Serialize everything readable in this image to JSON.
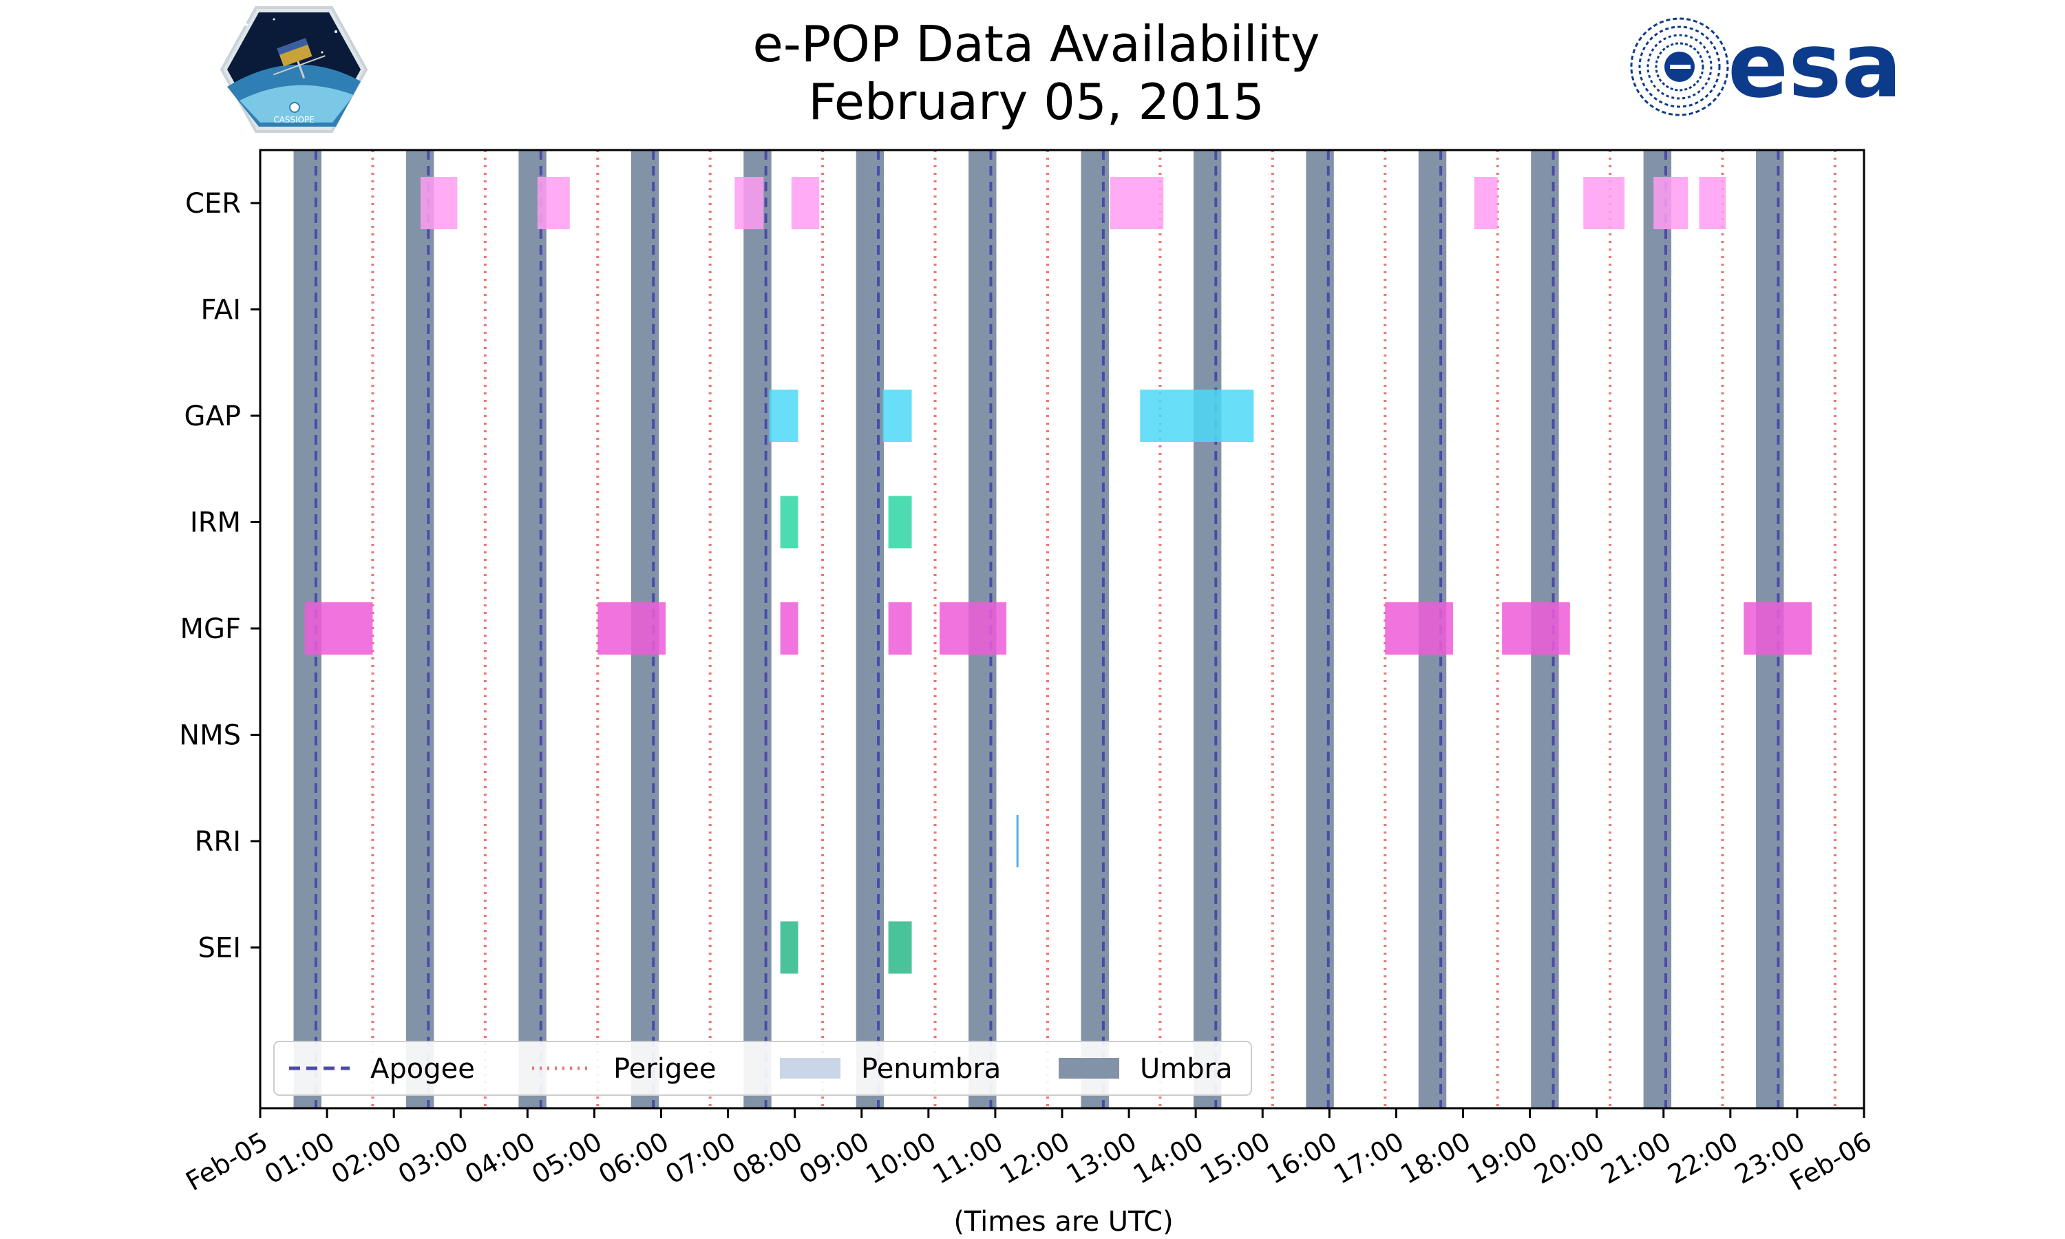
{
  "title": {
    "line1": "e-POP Data Availability",
    "line2": "February 05, 2015"
  },
  "logos": {
    "left_text": "CASSIOPE",
    "right_text": "esa"
  },
  "colors": {
    "umbra": "#8393a7",
    "apogee": "#4b4ba8",
    "perigee": "#f07373",
    "penumbra": "#c9d6e8",
    "CER": "#ff9ef2",
    "GAP": "#4dd8f7",
    "IRM": "#2ed6a3",
    "MGF": "#ef5cd8",
    "RRI": "#3aa0d8",
    "SEI": "#2ab88a",
    "esa_blue": "#0d3b8c"
  },
  "chart_data": {
    "type": "timeline",
    "xlabel": "(Times are UTC)",
    "xlim": [
      "Feb-05 00:00",
      "Feb-06 00:00"
    ],
    "x_ticks": [
      "Feb-05",
      "01:00",
      "02:00",
      "03:00",
      "04:00",
      "05:00",
      "06:00",
      "07:00",
      "08:00",
      "09:00",
      "10:00",
      "11:00",
      "12:00",
      "13:00",
      "14:00",
      "15:00",
      "16:00",
      "17:00",
      "18:00",
      "19:00",
      "20:00",
      "21:00",
      "22:00",
      "23:00",
      "Feb-06"
    ],
    "instruments": [
      "CER",
      "FAI",
      "GAP",
      "IRM",
      "MGF",
      "NMS",
      "RRI",
      "SEI"
    ],
    "umbra": [
      [
        "00:30",
        "00:55"
      ],
      [
        "02:11",
        "02:36"
      ],
      [
        "03:52",
        "04:17"
      ],
      [
        "05:33",
        "05:58"
      ],
      [
        "07:14",
        "07:39"
      ],
      [
        "08:55",
        "09:20"
      ],
      [
        "10:36",
        "11:01"
      ],
      [
        "12:17",
        "12:42"
      ],
      [
        "13:58",
        "14:23"
      ],
      [
        "15:39",
        "16:04"
      ],
      [
        "17:20",
        "17:45"
      ],
      [
        "19:01",
        "19:26"
      ],
      [
        "20:42",
        "21:07"
      ],
      [
        "22:23",
        "22:48"
      ]
    ],
    "apogee": [
      "00:50",
      "02:31",
      "04:12",
      "05:53",
      "07:34",
      "09:15",
      "10:56",
      "12:37",
      "14:18",
      "15:59",
      "17:40",
      "19:21",
      "21:02",
      "22:43"
    ],
    "perigee": [
      "01:41",
      "03:22",
      "05:03",
      "06:44",
      "08:25",
      "10:06",
      "11:47",
      "13:28",
      "15:09",
      "16:50",
      "18:31",
      "20:12",
      "21:53",
      "23:34"
    ],
    "availability": {
      "CER": [
        [
          "02:24",
          "02:57"
        ],
        [
          "04:09",
          "04:38"
        ],
        [
          "07:06",
          "07:32"
        ],
        [
          "07:57",
          "08:22"
        ],
        [
          "12:43",
          "13:31"
        ],
        [
          "18:10",
          "18:31"
        ],
        [
          "19:48",
          "20:25"
        ],
        [
          "20:51",
          "21:22"
        ],
        [
          "21:32",
          "21:56"
        ]
      ],
      "FAI": [],
      "GAP": [
        [
          "07:37",
          "08:03"
        ],
        [
          "09:19",
          "09:45"
        ],
        [
          "13:10",
          "14:52"
        ]
      ],
      "IRM": [
        [
          "07:47",
          "08:03"
        ],
        [
          "09:24",
          "09:45"
        ]
      ],
      "MGF": [
        [
          "00:40",
          "01:41"
        ],
        [
          "05:03",
          "06:04"
        ],
        [
          "07:47",
          "08:03"
        ],
        [
          "09:24",
          "09:45"
        ],
        [
          "10:10",
          "11:10"
        ],
        [
          "16:50",
          "17:51"
        ],
        [
          "18:35",
          "19:36"
        ],
        [
          "22:12",
          "23:13"
        ]
      ],
      "NMS": [],
      "RRI": [
        [
          "11:19",
          "11:20"
        ]
      ],
      "SEI": [
        [
          "07:47",
          "08:03"
        ],
        [
          "09:24",
          "09:45"
        ]
      ]
    },
    "legend": {
      "position": "bottom-left",
      "items": [
        "Apogee",
        "Perigee",
        "Penumbra",
        "Umbra"
      ]
    }
  }
}
